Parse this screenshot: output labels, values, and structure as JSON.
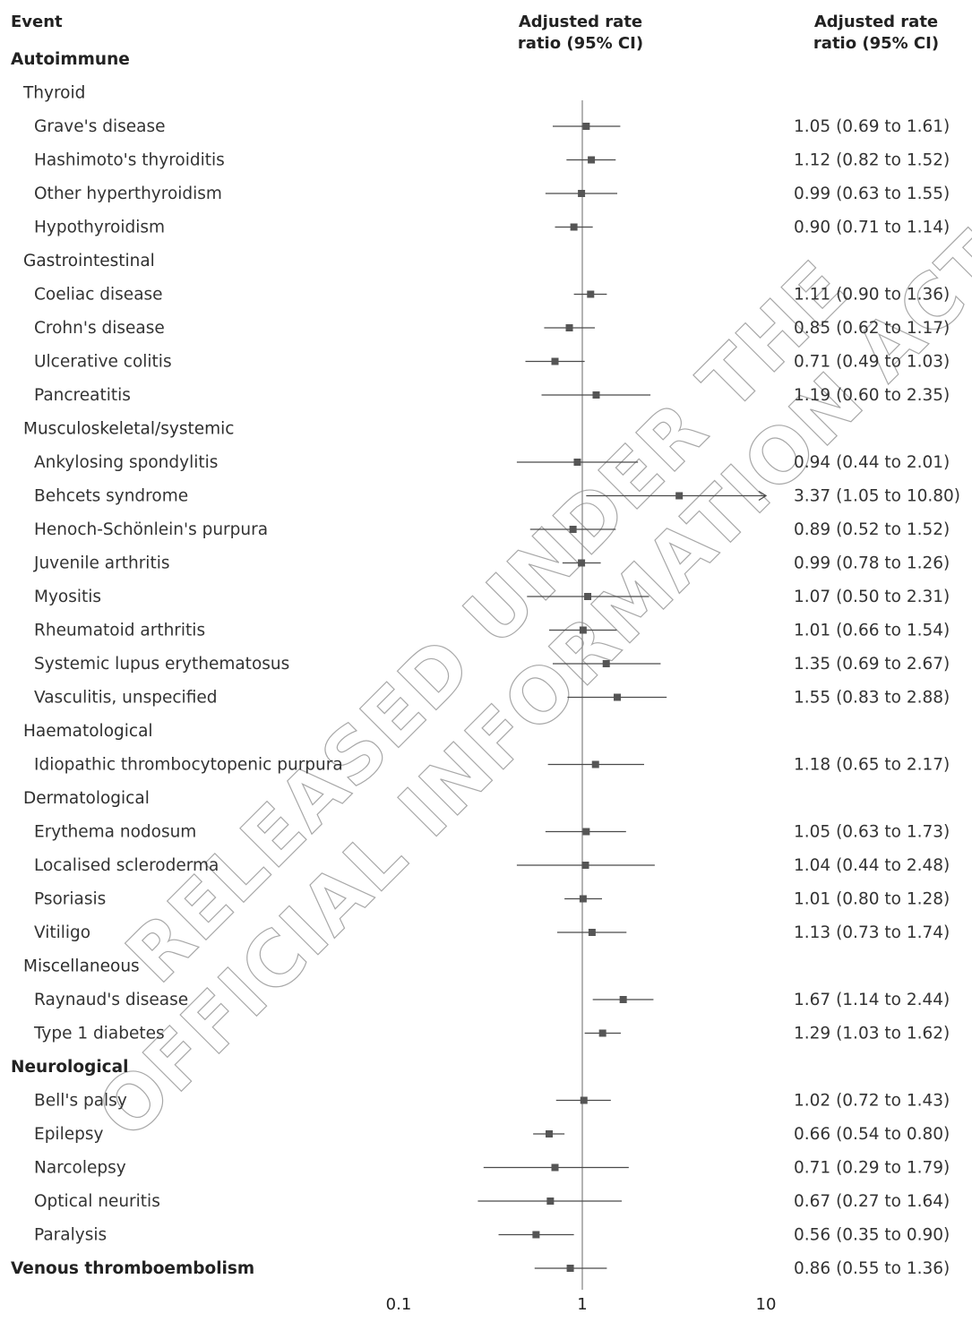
{
  "headers": {
    "event": "Event",
    "middle_line1": "Adjusted rate",
    "middle_line2": "ratio (95% CI)",
    "right_line1": "Adjusted rate",
    "right_line2": "ratio (95% CI)"
  },
  "watermark": [
    "RELEASED UNDER THE",
    "OFFICIAL INFORMATION ACT"
  ],
  "colors": {
    "text": "#333333",
    "marker": "#555555",
    "refline": "#8c8c8c"
  },
  "chart_data": {
    "type": "forest",
    "x_scale": "log",
    "reference_line": 1,
    "xticks": [
      0.1,
      1,
      10
    ],
    "xtick_labels": [
      "0.1",
      "1",
      "10"
    ],
    "rows": [
      {
        "label": "Autoimmune",
        "level": 0
      },
      {
        "label": "Thyroid",
        "level": 1
      },
      {
        "label": "Grave's disease",
        "level": 2,
        "rr": 1.05,
        "lo": 0.69,
        "hi": 1.61,
        "text": "1.05 (0.69 to 1.61)"
      },
      {
        "label": "Hashimoto's thyroiditis",
        "level": 2,
        "rr": 1.12,
        "lo": 0.82,
        "hi": 1.52,
        "text": "1.12 (0.82 to 1.52)"
      },
      {
        "label": "Other hyperthyroidism",
        "level": 2,
        "rr": 0.99,
        "lo": 0.63,
        "hi": 1.55,
        "text": "0.99 (0.63 to 1.55)"
      },
      {
        "label": "Hypothyroidism",
        "level": 2,
        "rr": 0.9,
        "lo": 0.71,
        "hi": 1.14,
        "text": "0.90 (0.71 to 1.14)"
      },
      {
        "label": "Gastrointestinal",
        "level": 1
      },
      {
        "label": "Coeliac disease",
        "level": 2,
        "rr": 1.11,
        "lo": 0.9,
        "hi": 1.36,
        "text": "1.11 (0.90 to 1.36)"
      },
      {
        "label": "Crohn's disease",
        "level": 2,
        "rr": 0.85,
        "lo": 0.62,
        "hi": 1.17,
        "text": "0.85 (0.62 to 1.17)"
      },
      {
        "label": "Ulcerative colitis",
        "level": 2,
        "rr": 0.71,
        "lo": 0.49,
        "hi": 1.03,
        "text": "0.71 (0.49 to 1.03)"
      },
      {
        "label": "Pancreatitis",
        "level": 2,
        "rr": 1.19,
        "lo": 0.6,
        "hi": 2.35,
        "text": "1.19 (0.60 to 2.35)"
      },
      {
        "label": "Musculoskeletal/systemic",
        "level": 1
      },
      {
        "label": "Ankylosing spondylitis",
        "level": 2,
        "rr": 0.94,
        "lo": 0.44,
        "hi": 2.01,
        "text": "0.94 (0.44 to 2.01)"
      },
      {
        "label": "Behcets syndrome",
        "level": 2,
        "rr": 3.37,
        "lo": 1.05,
        "hi": 10.8,
        "text": "3.37 (1.05 to 10.80)",
        "arrow": true
      },
      {
        "label": "Henoch-Schönlein's purpura",
        "level": 2,
        "rr": 0.89,
        "lo": 0.52,
        "hi": 1.52,
        "text": "0.89 (0.52 to 1.52)"
      },
      {
        "label": "Juvenile arthritis",
        "level": 2,
        "rr": 0.99,
        "lo": 0.78,
        "hi": 1.26,
        "text": "0.99 (0.78 to 1.26)"
      },
      {
        "label": "Myositis",
        "level": 2,
        "rr": 1.07,
        "lo": 0.5,
        "hi": 2.31,
        "text": "1.07 (0.50 to 2.31)"
      },
      {
        "label": "Rheumatoid arthritis",
        "level": 2,
        "rr": 1.01,
        "lo": 0.66,
        "hi": 1.54,
        "text": "1.01 (0.66 to 1.54)"
      },
      {
        "label": "Systemic lupus erythematosus",
        "level": 2,
        "rr": 1.35,
        "lo": 0.69,
        "hi": 2.67,
        "text": "1.35 (0.69 to 2.67)"
      },
      {
        "label": "Vasculitis, unspecified",
        "level": 2,
        "rr": 1.55,
        "lo": 0.83,
        "hi": 2.88,
        "text": "1.55 (0.83 to 2.88)"
      },
      {
        "label": "Haematological",
        "level": 1
      },
      {
        "label": "Idiopathic thrombocytopenic purpura",
        "level": 2,
        "rr": 1.18,
        "lo": 0.65,
        "hi": 2.17,
        "text": "1.18 (0.65 to 2.17)"
      },
      {
        "label": "Dermatological",
        "level": 1
      },
      {
        "label": "Erythema nodosum",
        "level": 2,
        "rr": 1.05,
        "lo": 0.63,
        "hi": 1.73,
        "text": "1.05 (0.63 to 1.73)"
      },
      {
        "label": "Localised scleroderma",
        "level": 2,
        "rr": 1.04,
        "lo": 0.44,
        "hi": 2.48,
        "text": "1.04 (0.44 to 2.48)"
      },
      {
        "label": "Psoriasis",
        "level": 2,
        "rr": 1.01,
        "lo": 0.8,
        "hi": 1.28,
        "text": "1.01 (0.80 to 1.28)"
      },
      {
        "label": "Vitiligo",
        "level": 2,
        "rr": 1.13,
        "lo": 0.73,
        "hi": 1.74,
        "text": "1.13 (0.73 to 1.74)"
      },
      {
        "label": "Miscellaneous",
        "level": 1
      },
      {
        "label": "Raynaud's disease",
        "level": 2,
        "rr": 1.67,
        "lo": 1.14,
        "hi": 2.44,
        "text": "1.67 (1.14 to 2.44)"
      },
      {
        "label": "Type 1 diabetes",
        "level": 2,
        "rr": 1.29,
        "lo": 1.03,
        "hi": 1.62,
        "text": "1.29 (1.03 to 1.62)"
      },
      {
        "label": "Neurological",
        "level": 0
      },
      {
        "label": "Bell's palsy",
        "level": 2,
        "rr": 1.02,
        "lo": 0.72,
        "hi": 1.43,
        "text": "1.02 (0.72 to 1.43)"
      },
      {
        "label": "Epilepsy",
        "level": 2,
        "rr": 0.66,
        "lo": 0.54,
        "hi": 0.8,
        "text": "0.66 (0.54 to 0.80)"
      },
      {
        "label": "Narcolepsy",
        "level": 2,
        "rr": 0.71,
        "lo": 0.29,
        "hi": 1.79,
        "text": "0.71 (0.29 to 1.79)"
      },
      {
        "label": "Optical neuritis",
        "level": 2,
        "rr": 0.67,
        "lo": 0.27,
        "hi": 1.64,
        "text": "0.67 (0.27 to 1.64)"
      },
      {
        "label": "Paralysis",
        "level": 2,
        "rr": 0.56,
        "lo": 0.35,
        "hi": 0.9,
        "text": "0.56 (0.35 to 0.90)"
      },
      {
        "label": "Venous thromboembolism",
        "level": 0,
        "rr": 0.86,
        "lo": 0.55,
        "hi": 1.36,
        "text": "0.86 (0.55 to 1.36)"
      }
    ]
  }
}
